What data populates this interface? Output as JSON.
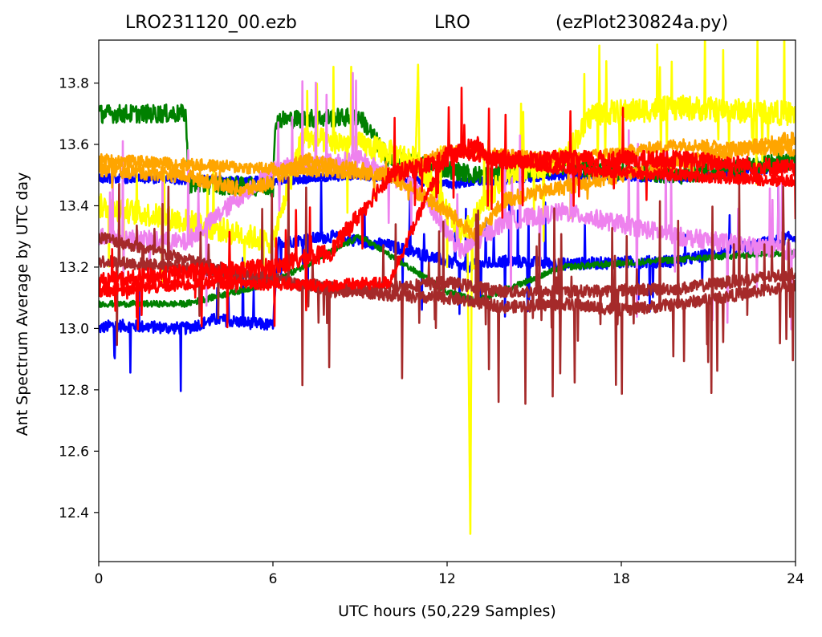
{
  "title": {
    "left": "LRO231120_00.ezb",
    "center": "LRO",
    "right": "(ezPlot230824a.py)"
  },
  "chart_data": {
    "type": "line",
    "xlabel": "UTC hours  (50,229 Samples)",
    "ylabel": "Ant Spectrum Average by UTC day",
    "xlim": [
      0,
      24
    ],
    "ylim": [
      12.24,
      13.94
    ],
    "xticks": [
      0,
      6,
      12,
      18,
      24
    ],
    "yticks": [
      12.4,
      12.6,
      12.8,
      13.0,
      13.2,
      13.4,
      13.6,
      13.8
    ],
    "ytick_labels": [
      "12.4",
      "12.6",
      "12.8",
      "13.0",
      "13.2",
      "13.4",
      "13.6",
      "13.8"
    ],
    "grid": false,
    "series": [
      {
        "color": "#0000ff",
        "noise": 0.02,
        "spikes": 0.2,
        "x": [
          0,
          0.5,
          3,
          4,
          6,
          6.2,
          8,
          10,
          12,
          12.5,
          14,
          16,
          20,
          24
        ],
        "y": [
          13.0,
          13.01,
          13.0,
          13.03,
          13.01,
          13.28,
          13.3,
          13.27,
          13.22,
          13.2,
          13.22,
          13.21,
          13.22,
          13.3
        ]
      },
      {
        "color": "#0000ff",
        "noise": 0.015,
        "spikes": 0,
        "x": [
          0,
          6,
          9,
          11,
          12,
          16,
          20,
          24
        ],
        "y": [
          13.49,
          13.48,
          13.5,
          13.48,
          13.47,
          13.5,
          13.49,
          13.53
        ]
      },
      {
        "color": "#008000",
        "noise": 0.03,
        "spikes": 0,
        "x": [
          0,
          3,
          3.1,
          6,
          6.1,
          9,
          10,
          12,
          13,
          16,
          20,
          24
        ],
        "y": [
          13.7,
          13.7,
          13.47,
          13.46,
          13.68,
          13.69,
          13.55,
          13.52,
          13.5,
          13.53,
          13.5,
          13.55
        ]
      },
      {
        "color": "#008000",
        "noise": 0.01,
        "spikes": 0,
        "x": [
          0,
          3,
          6,
          9,
          12,
          13,
          16,
          24
        ],
        "y": [
          13.08,
          13.08,
          13.15,
          13.3,
          13.12,
          13.09,
          13.2,
          13.25
        ]
      },
      {
        "color": "#ffff00",
        "noise": 0.04,
        "spikes": 0.25,
        "x": [
          0,
          3,
          6,
          7,
          9,
          11,
          12.5,
          14,
          16,
          17,
          20,
          24
        ],
        "y": [
          13.4,
          13.35,
          13.28,
          13.62,
          13.6,
          13.55,
          13.3,
          13.5,
          13.55,
          13.7,
          13.72,
          13.7
        ]
      },
      {
        "color": "#ffff00",
        "noise": 0.005,
        "spikes": 0,
        "x": [
          10.9,
          11.0,
          11.05,
          12.7,
          12.8,
          12.85,
          12.9,
          13.0
        ],
        "y": [
          13.5,
          13.86,
          13.5,
          13.3,
          12.33,
          13.3,
          13.2,
          13.2
        ]
      },
      {
        "color": "#ee82ee",
        "noise": 0.03,
        "spikes": 0.3,
        "x": [
          0,
          3,
          6,
          9,
          11,
          12.5,
          14,
          16,
          20,
          24
        ],
        "y": [
          13.3,
          13.28,
          13.52,
          13.55,
          13.45,
          13.25,
          13.35,
          13.38,
          13.3,
          13.25
        ]
      },
      {
        "color": "#ffa500",
        "noise": 0.025,
        "spikes": 0.05,
        "x": [
          0,
          3,
          5,
          6,
          7,
          10,
          12,
          13,
          14,
          18,
          24
        ],
        "y": [
          13.52,
          13.5,
          13.45,
          13.48,
          13.55,
          13.5,
          13.38,
          13.3,
          13.42,
          13.5,
          13.62
        ]
      },
      {
        "color": "#ffa500",
        "noise": 0.02,
        "spikes": 0,
        "x": [
          0,
          6,
          10,
          12,
          16,
          20,
          24
        ],
        "y": [
          13.55,
          13.52,
          13.5,
          13.58,
          13.55,
          13.6,
          13.58
        ]
      },
      {
        "color": "#a52a2a",
        "noise": 0.02,
        "spikes": 0.35,
        "x": [
          0,
          3,
          6,
          9,
          11,
          12,
          14,
          16,
          18,
          20,
          24
        ],
        "y": [
          13.22,
          13.2,
          13.16,
          13.12,
          13.1,
          13.1,
          13.07,
          13.08,
          13.06,
          13.08,
          13.14
        ]
      },
      {
        "color": "#a52a2a",
        "noise": 0.02,
        "spikes": 0.15,
        "x": [
          0,
          4,
          8,
          12,
          14,
          16,
          20,
          24
        ],
        "y": [
          13.3,
          13.2,
          13.12,
          13.15,
          13.12,
          13.12,
          13.13,
          13.18
        ]
      },
      {
        "color": "#ff0000",
        "noise": 0.03,
        "spikes": 0.2,
        "x": [
          0,
          3,
          6,
          8,
          10,
          12,
          13,
          13.5,
          16,
          20,
          24
        ],
        "y": [
          13.15,
          13.18,
          13.2,
          13.25,
          13.5,
          13.55,
          13.6,
          13.55,
          13.55,
          13.55,
          13.52
        ]
      },
      {
        "color": "#ff0000",
        "noise": 0.02,
        "spikes": 0,
        "x": [
          0,
          4,
          8,
          10,
          12,
          16,
          20,
          24
        ],
        "y": [
          13.12,
          13.15,
          13.14,
          13.15,
          13.58,
          13.52,
          13.5,
          13.48
        ]
      }
    ]
  }
}
